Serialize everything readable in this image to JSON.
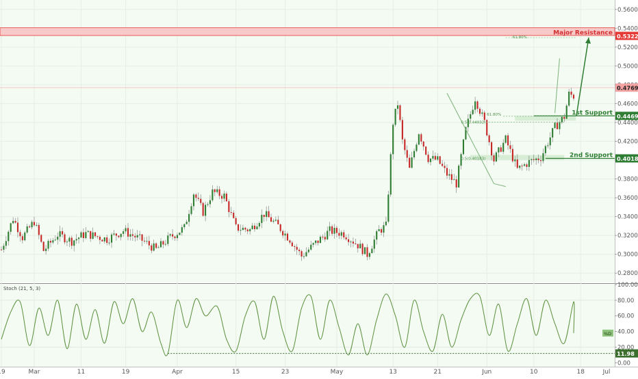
{
  "chart_data": {
    "type": "candlestick",
    "price_axis": {
      "ylim": [
        0.27,
        0.57
      ],
      "ticks": [
        0.28,
        0.3,
        0.32,
        0.34,
        0.36,
        0.38,
        0.4,
        0.42,
        0.44,
        0.46,
        0.48,
        0.5,
        0.52,
        0.54,
        0.56
      ],
      "tick_labels": [
        "0.28000",
        "0.30000",
        "0.32000",
        "0.34000",
        "0.36000",
        "0.38000",
        "0.40000",
        "0.42000",
        "0.44000",
        "0.46000",
        "0.48000",
        "0.50000",
        "0.52000",
        "0.54000",
        "0.56000"
      ]
    },
    "stoch_axis": {
      "ylim": [
        -5,
        100
      ],
      "ticks": [
        0,
        20,
        40,
        60,
        80,
        100
      ],
      "tick_labels": [
        "0.00",
        "20.00",
        "40.00",
        "60.00",
        "80.00",
        "100.00"
      ]
    },
    "time_axis": {
      "labels": [
        "19",
        "Mar",
        "11",
        "19",
        "Apr",
        "15",
        "23",
        "May",
        "13",
        "21",
        "Jun",
        "10",
        "18",
        "Jul"
      ],
      "bar_index": [
        0,
        14,
        34,
        53,
        75,
        100,
        121,
        143,
        167,
        186,
        207,
        227,
        247,
        280
      ],
      "total_bars": 245
    },
    "colors": {
      "up": "#2e7d32",
      "down": "#c62828",
      "wick": "#555555",
      "stoch": "#5a8f3c",
      "resistance_fill": "#f8c9c9",
      "resistance_line": "#e53935",
      "support": "#2e7d32",
      "support_fill": "#cfeacd",
      "current_price_bg": "#f4a3a3"
    },
    "key_points": [
      {
        "i": 0,
        "p": 0.305
      },
      {
        "i": 5,
        "p": 0.338
      },
      {
        "i": 9,
        "p": 0.318
      },
      {
        "i": 14,
        "p": 0.335
      },
      {
        "i": 18,
        "p": 0.304
      },
      {
        "i": 24,
        "p": 0.321
      },
      {
        "i": 30,
        "p": 0.314
      },
      {
        "i": 36,
        "p": 0.322
      },
      {
        "i": 45,
        "p": 0.316
      },
      {
        "i": 52,
        "p": 0.325
      },
      {
        "i": 60,
        "p": 0.315
      },
      {
        "i": 66,
        "p": 0.305
      },
      {
        "i": 72,
        "p": 0.318
      },
      {
        "i": 78,
        "p": 0.328
      },
      {
        "i": 82,
        "p": 0.365
      },
      {
        "i": 86,
        "p": 0.345
      },
      {
        "i": 90,
        "p": 0.366
      },
      {
        "i": 95,
        "p": 0.362
      },
      {
        "i": 100,
        "p": 0.328
      },
      {
        "i": 106,
        "p": 0.326
      },
      {
        "i": 112,
        "p": 0.343
      },
      {
        "i": 118,
        "p": 0.33
      },
      {
        "i": 123,
        "p": 0.316
      },
      {
        "i": 128,
        "p": 0.298
      },
      {
        "i": 134,
        "p": 0.312
      },
      {
        "i": 140,
        "p": 0.325
      },
      {
        "i": 146,
        "p": 0.322
      },
      {
        "i": 152,
        "p": 0.31
      },
      {
        "i": 156,
        "p": 0.3
      },
      {
        "i": 161,
        "p": 0.325
      },
      {
        "i": 164,
        "p": 0.33
      },
      {
        "i": 167,
        "p": 0.44
      },
      {
        "i": 169,
        "p": 0.46
      },
      {
        "i": 171,
        "p": 0.42
      },
      {
        "i": 174,
        "p": 0.39
      },
      {
        "i": 178,
        "p": 0.43
      },
      {
        "i": 182,
        "p": 0.402
      },
      {
        "i": 186,
        "p": 0.4
      },
      {
        "i": 190,
        "p": 0.385
      },
      {
        "i": 194,
        "p": 0.375
      },
      {
        "i": 198,
        "p": 0.432
      },
      {
        "i": 202,
        "p": 0.466
      },
      {
        "i": 206,
        "p": 0.44
      },
      {
        "i": 210,
        "p": 0.4
      },
      {
        "i": 215,
        "p": 0.422
      },
      {
        "i": 220,
        "p": 0.39
      },
      {
        "i": 225,
        "p": 0.398
      },
      {
        "i": 230,
        "p": 0.403
      },
      {
        "i": 236,
        "p": 0.435
      },
      {
        "i": 240,
        "p": 0.446
      },
      {
        "i": 242,
        "p": 0.47
      },
      {
        "i": 244,
        "p": 0.468
      }
    ],
    "stoch_points": [
      {
        "i": 0,
        "v": 30
      },
      {
        "i": 4,
        "v": 65
      },
      {
        "i": 8,
        "v": 78
      },
      {
        "i": 12,
        "v": 22
      },
      {
        "i": 16,
        "v": 70
      },
      {
        "i": 20,
        "v": 35
      },
      {
        "i": 24,
        "v": 80
      },
      {
        "i": 28,
        "v": 18
      },
      {
        "i": 32,
        "v": 75
      },
      {
        "i": 36,
        "v": 30
      },
      {
        "i": 40,
        "v": 68
      },
      {
        "i": 44,
        "v": 25
      },
      {
        "i": 48,
        "v": 78
      },
      {
        "i": 52,
        "v": 50
      },
      {
        "i": 56,
        "v": 82
      },
      {
        "i": 60,
        "v": 40
      },
      {
        "i": 64,
        "v": 65
      },
      {
        "i": 68,
        "v": 25
      },
      {
        "i": 71,
        "v": 12
      },
      {
        "i": 75,
        "v": 80
      },
      {
        "i": 79,
        "v": 45
      },
      {
        "i": 83,
        "v": 82
      },
      {
        "i": 87,
        "v": 60
      },
      {
        "i": 92,
        "v": 72
      },
      {
        "i": 96,
        "v": 30
      },
      {
        "i": 100,
        "v": 15
      },
      {
        "i": 104,
        "v": 60
      },
      {
        "i": 108,
        "v": 78
      },
      {
        "i": 112,
        "v": 30
      },
      {
        "i": 116,
        "v": 85
      },
      {
        "i": 120,
        "v": 40
      },
      {
        "i": 124,
        "v": 15
      },
      {
        "i": 128,
        "v": 70
      },
      {
        "i": 132,
        "v": 85
      },
      {
        "i": 136,
        "v": 30
      },
      {
        "i": 140,
        "v": 80
      },
      {
        "i": 144,
        "v": 45
      },
      {
        "i": 148,
        "v": 10
      },
      {
        "i": 152,
        "v": 50
      },
      {
        "i": 156,
        "v": 10
      },
      {
        "i": 160,
        "v": 55
      },
      {
        "i": 164,
        "v": 88
      },
      {
        "i": 168,
        "v": 60
      },
      {
        "i": 172,
        "v": 20
      },
      {
        "i": 176,
        "v": 80
      },
      {
        "i": 180,
        "v": 40
      },
      {
        "i": 184,
        "v": 15
      },
      {
        "i": 188,
        "v": 62
      },
      {
        "i": 192,
        "v": 20
      },
      {
        "i": 196,
        "v": 55
      },
      {
        "i": 200,
        "v": 82
      },
      {
        "i": 204,
        "v": 85
      },
      {
        "i": 208,
        "v": 35
      },
      {
        "i": 212,
        "v": 75
      },
      {
        "i": 216,
        "v": 15
      },
      {
        "i": 220,
        "v": 50
      },
      {
        "i": 224,
        "v": 82
      },
      {
        "i": 228,
        "v": 35
      },
      {
        "i": 232,
        "v": 80
      },
      {
        "i": 236,
        "v": 50
      },
      {
        "i": 240,
        "v": 25
      },
      {
        "i": 244,
        "v": 78
      },
      {
        "i": 248,
        "v": 38
      }
    ],
    "levels": {
      "major_resistance": {
        "label": "Major Resistance",
        "value_label": "0.53229",
        "value": 0.53229,
        "top": 0.5405
      },
      "support_1": {
        "label": "1st Support",
        "value_label": "0.44698",
        "value": 0.44698
      },
      "support_2": {
        "label": "2nd Support",
        "value_label": "0.40183",
        "value": 0.40183
      },
      "current_price": {
        "value_label": "0.47695",
        "value": 0.47695
      },
      "stoch_low": {
        "value_label": "11.98",
        "value": 11.98
      },
      "stoch_pct": {
        "value_label": "%D",
        "value": 38
      }
    },
    "fib_labels": [
      "61.80%",
      "61.80%",
      "0.5(0.44032)",
      "0.5(0.40183)"
    ],
    "stoch_title": "Stoch (21, 5, 3)"
  }
}
